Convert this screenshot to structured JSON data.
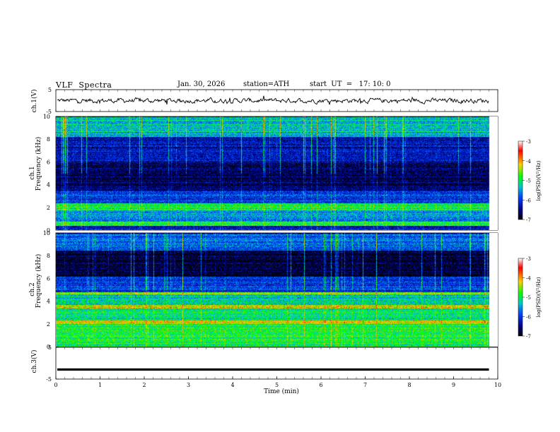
{
  "header": {
    "title": "VLF  Spectra",
    "date": "Jan. 30, 2026",
    "station": "station=ATH",
    "start": "start  UT  =   17: 10: 0"
  },
  "panels": {
    "ch1_waveform": {
      "ylabel": "ch.1(V)"
    },
    "ch1_spectrogram": {
      "ylabel_line1": "ch.1",
      "ylabel_line2": "Frequency (kHz)"
    },
    "ch2_spectrogram": {
      "ylabel_line1": "ch.2",
      "ylabel_line2": "Frequency (kHz)"
    },
    "ch3_waveform": {
      "ylabel": "ch.3(V)"
    }
  },
  "colorbar": {
    "label": "log(PSD)(V²/Hz)",
    "ticks": [
      "-3",
      "-4",
      "-5",
      "-6",
      "-7"
    ],
    "colors": [
      "#ffffff",
      "#ff0000",
      "#ffd000",
      "#00ff00",
      "#00c8c8",
      "#0040ff",
      "#000080",
      "#000000"
    ]
  },
  "chart_data": [
    {
      "type": "line",
      "title": "ch.1 waveform",
      "ylabel": "ch.1(V)",
      "xlim": [
        0,
        10
      ],
      "ylim": [
        -5,
        5
      ],
      "yticks": [
        5,
        -5
      ],
      "x_extent_min": 9.8,
      "note_series": "noisy signal around 0 V, amplitude about ±1 V"
    },
    {
      "type": "heatmap",
      "title": "ch.1 spectrogram",
      "xlabel": "",
      "ylabel": "Frequency (kHz)",
      "xlim": [
        0,
        10
      ],
      "ylim": [
        0,
        10
      ],
      "yticks": [
        0,
        2,
        4,
        6,
        8,
        10
      ],
      "clim": [
        -7,
        -3
      ],
      "colorbar_label": "log(PSD)(V²/Hz)",
      "bands_khz": [
        {
          "f": [
            0.0,
            0.4
          ],
          "level": -6.2
        },
        {
          "f": [
            0.4,
            0.8
          ],
          "level": -4.8
        },
        {
          "f": [
            0.8,
            1.8
          ],
          "level": -5.6
        },
        {
          "f": [
            1.8,
            2.4
          ],
          "level": -5.0
        },
        {
          "f": [
            2.4,
            3.5
          ],
          "level": -6.0
        },
        {
          "f": [
            3.5,
            6.0
          ],
          "level": -6.6
        },
        {
          "f": [
            6.0,
            8.2
          ],
          "level": -6.3
        },
        {
          "f": [
            8.2,
            10.0
          ],
          "level": -5.3
        }
      ]
    },
    {
      "type": "heatmap",
      "title": "ch.2 spectrogram",
      "xlabel": "",
      "ylabel": "Frequency (kHz)",
      "xlim": [
        0,
        10
      ],
      "ylim": [
        0,
        10
      ],
      "yticks": [
        0,
        2,
        4,
        6,
        8,
        10
      ],
      "clim": [
        -7,
        -3
      ],
      "colorbar_label": "log(PSD)(V²/Hz)",
      "bands_khz": [
        {
          "f": [
            0.0,
            0.5
          ],
          "level": -5.0
        },
        {
          "f": [
            0.5,
            2.0
          ],
          "level": -4.9
        },
        {
          "f": [
            2.0,
            2.3
          ],
          "level": -4.3
        },
        {
          "f": [
            2.3,
            3.4
          ],
          "level": -5.1
        },
        {
          "f": [
            3.4,
            3.7
          ],
          "level": -4.2
        },
        {
          "f": [
            3.7,
            4.6
          ],
          "level": -5.3
        },
        {
          "f": [
            4.6,
            4.8
          ],
          "level": -4.5
        },
        {
          "f": [
            4.8,
            6.2
          ],
          "level": -6.0
        },
        {
          "f": [
            6.2,
            8.5
          ],
          "level": -6.8
        },
        {
          "f": [
            8.5,
            10.0
          ],
          "level": -5.8
        }
      ]
    },
    {
      "type": "line",
      "title": "ch.3 waveform",
      "xlabel": "Time  (min)",
      "ylabel": "ch.3(V)",
      "xlim": [
        0,
        10
      ],
      "ylim": [
        -5,
        5
      ],
      "yticks": [
        5,
        -5
      ],
      "xticks": [
        0,
        1,
        2,
        3,
        4,
        5,
        6,
        7,
        8,
        9,
        10
      ],
      "series": [
        {
          "values_const": -2.0
        }
      ]
    }
  ]
}
